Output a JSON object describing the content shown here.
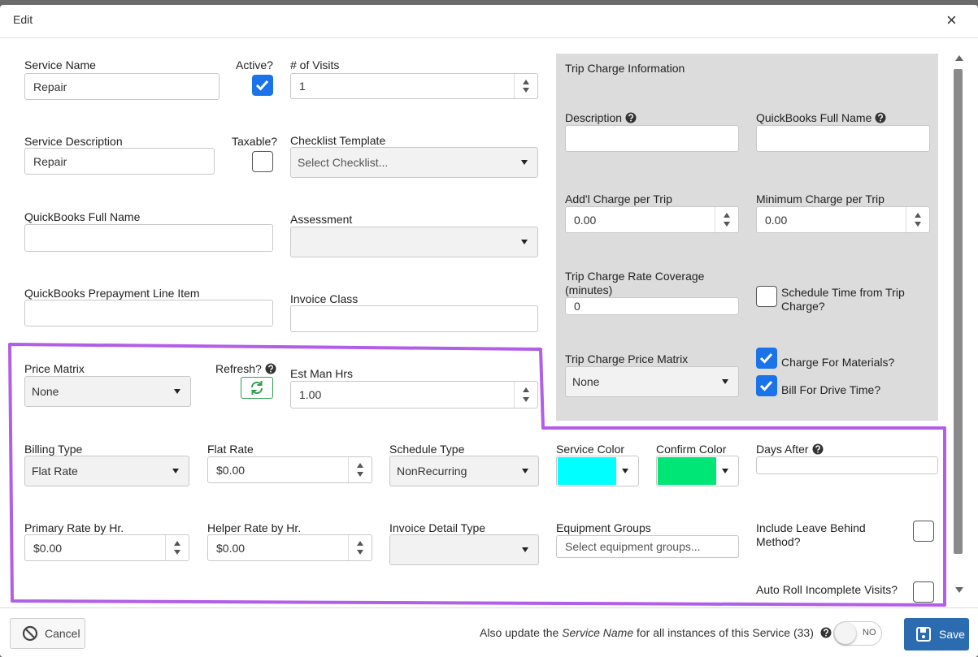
{
  "header": {
    "title": "Edit",
    "close": "×"
  },
  "form": {
    "service_name": {
      "label": "Service Name",
      "value": "Repair"
    },
    "active": {
      "label": "Active?",
      "checked": true
    },
    "visits": {
      "label": "# of Visits",
      "value": "1"
    },
    "service_description": {
      "label": "Service Description",
      "value": "Repair"
    },
    "taxable": {
      "label": "Taxable?",
      "checked": false
    },
    "checklist_template": {
      "label": "Checklist Template",
      "placeholder": "Select Checklist..."
    },
    "quickbooks_full_name": {
      "label": "QuickBooks Full Name"
    },
    "assessment": {
      "label": "Assessment"
    },
    "prepayment_line_item": {
      "label": "QuickBooks Prepayment Line Item"
    },
    "invoice_class": {
      "label": "Invoice Class"
    },
    "price_matrix": {
      "label": "Price Matrix",
      "value": "None"
    },
    "refresh": {
      "label": "Refresh?"
    },
    "est_man_hrs": {
      "label": "Est Man Hrs",
      "value": "1.00"
    },
    "billing_type": {
      "label": "Billing Type",
      "value": "Flat Rate"
    },
    "flat_rate": {
      "label": "Flat Rate",
      "value": "$0.00"
    },
    "schedule_type": {
      "label": "Schedule Type",
      "value": "NonRecurring"
    },
    "service_color": {
      "label": "Service Color",
      "color": "#00ffff"
    },
    "confirm_color": {
      "label": "Confirm Color",
      "color": "#00e676"
    },
    "days_after": {
      "label": "Days After"
    },
    "primary_rate": {
      "label": "Primary Rate by Hr.",
      "value": "$0.00"
    },
    "helper_rate": {
      "label": "Helper Rate by Hr.",
      "value": "$0.00"
    },
    "invoice_detail_type": {
      "label": "Invoice Detail Type"
    },
    "equipment_groups": {
      "label": "Equipment Groups",
      "placeholder": "Select equipment groups..."
    },
    "include_leave_behind": {
      "label": "Include Leave Behind Method?",
      "checked": false
    },
    "auto_roll": {
      "label": "Auto Roll Incomplete Visits?",
      "checked": false
    }
  },
  "trip_charge": {
    "title": "Trip Charge Information",
    "description": {
      "label": "Description"
    },
    "quickbooks_full_name": {
      "label": "QuickBooks Full Name"
    },
    "addl_charge": {
      "label": "Add'l Charge per Trip",
      "value": "0.00"
    },
    "minimum_charge": {
      "label": "Minimum Charge per Trip",
      "value": "0.00"
    },
    "rate_coverage": {
      "label": "Trip Charge Rate Coverage (minutes)",
      "value": "0"
    },
    "schedule_time": {
      "label": "Schedule Time from Trip Charge?",
      "checked": false
    },
    "price_matrix": {
      "label": "Trip Charge Price Matrix",
      "value": "None"
    },
    "charge_materials": {
      "label": "Charge For Materials?",
      "checked": true
    },
    "bill_drive_time": {
      "label": "Bill For Drive Time?",
      "checked": true
    }
  },
  "footer": {
    "cancel": "Cancel",
    "note_before": "Also update the",
    "note_field": "Service Name",
    "note_after": "for all instances of this Service (33)",
    "toggle": "NO",
    "save": "Save"
  }
}
